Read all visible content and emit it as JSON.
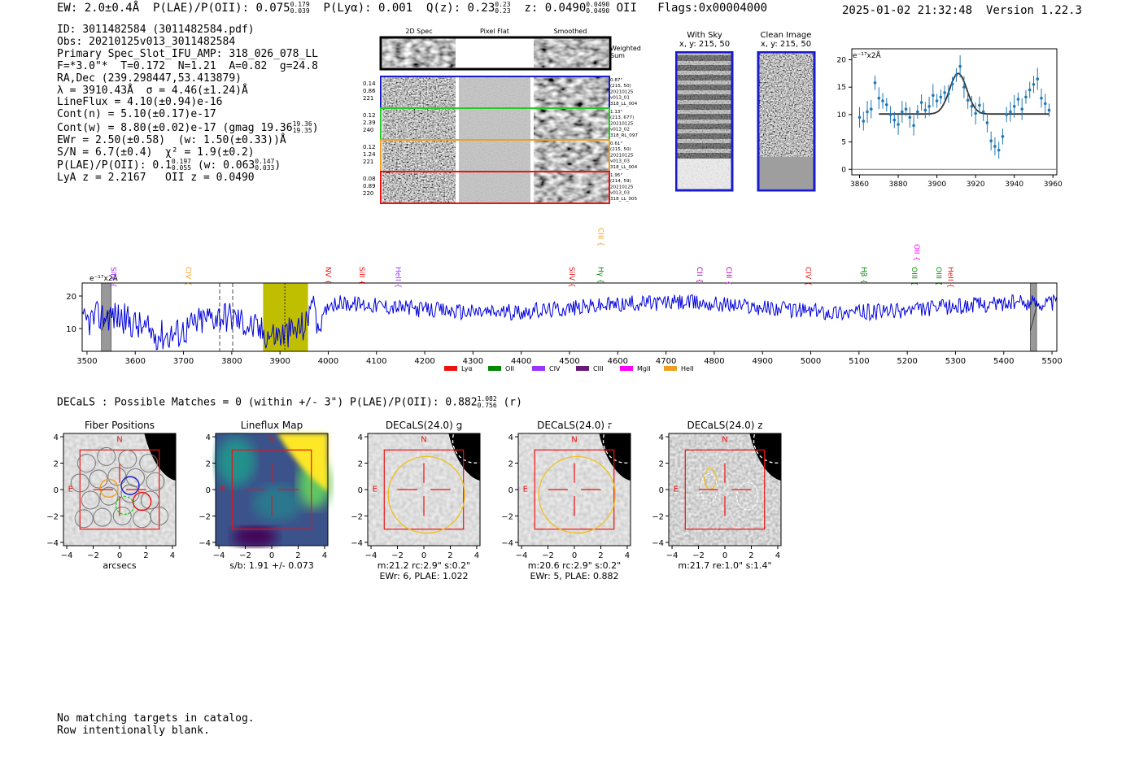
{
  "header": {
    "ew": "EW: 2.0±0.4Å",
    "plae_label": "P(LAE)/P(OII): 0.075",
    "plae_up": "0.179",
    "plae_dn": "0.039",
    "plya": "P(Lyα): 0.001",
    "qz_label": "Q(z): 0.23",
    "qz_up": "0.23",
    "qz_dn": "0.23",
    "z_label": "z: 0.0490",
    "z_up": "0.0490",
    "z_dn": "0.0490",
    "z_line": "OII",
    "flags": "Flags:0x00004000",
    "datetime": "2025-01-02 21:32:48",
    "version": "Version 1.22.3"
  },
  "info": {
    "id": "ID: 3011482584 (3011482584.pdf)",
    "obs": "Obs: 20210125v013_3011482584",
    "primary": "Primary Spec_Slot_IFU_AMP: 318_026_078_LL",
    "fiber": "F=*3.0\"*  T=0.172  N=1.21  A=0.82  g=24.8",
    "radec": "RA,Dec (239.298447,53.413879)",
    "lambda": "λ = 3910.43Å  σ = 4.46(±1.24)Å",
    "lineflux": "LineFlux = 4.10(±0.94)e-16",
    "contn": "Cont(n) = 5.10(±0.17)e-17",
    "contw": "Cont(w) = 8.80(±0.02)e-17 (gmag 19.36",
    "contw_up": "19.36",
    "contw_dn": "19.35",
    "contw_end": ")",
    "ewr": "EWr = 2.50(±0.58)  (w: 1.50(±0.33))Å",
    "sn": "S/N = 6.7(±0.4)  χ² = 1.9(±0.2)",
    "plae": "P(LAE)/P(OII): 0.1",
    "plae_up": "0.197",
    "plae_dn": "0.055",
    "plae_w": "(w: 0.063",
    "plae_w_up": "0.147",
    "plae_w_dn": "0.033",
    "plae_w_end": ")",
    "lyaz": "LyA z = 2.2167   OII z = 0.0490"
  },
  "spec2d": {
    "col_headers": [
      "2D Spec",
      "Pixel Flat",
      "Smoothed"
    ],
    "weighted_sum": [
      "Weighted",
      "Sum"
    ],
    "rows": [
      {
        "left": [
          "0.14",
          "0.86",
          "221"
        ],
        "right": [
          "0.87\"",
          "(215, 50)",
          "20210125",
          "v013_01",
          "318_LL_004"
        ],
        "color": "#1a1acd"
      },
      {
        "left": [
          "0.12",
          "2.39",
          "240"
        ],
        "right": [
          "1.13\"",
          "(213, 677)",
          "20210125",
          "v013_02",
          "318_RL_097"
        ],
        "color": "#22cc22"
      },
      {
        "left": [
          "0.12",
          "1.24",
          "221"
        ],
        "right": [
          "0.61\"",
          "(215, 50)",
          "20210125",
          "v013_03",
          "318_LL_004"
        ],
        "color": "#f0a020"
      },
      {
        "left": [
          "0.08",
          "0.89",
          "220"
        ],
        "right": [
          "1.95\"",
          "(214, 59)",
          "20210125",
          "v013_03",
          "318_LL_005"
        ],
        "color": "#ee1111"
      }
    ]
  },
  "cutouts": {
    "with_sky": [
      "With Sky",
      "x, y: 215, 50"
    ],
    "clean": [
      "Clean Image",
      "x, y: 215, 50"
    ]
  },
  "zoom_plot": {
    "unit": "e⁻¹⁷x2Å",
    "xticks": [
      "3860",
      "3880",
      "3900",
      "3920",
      "3940",
      "3960"
    ],
    "yticks": [
      "0",
      "5",
      "10",
      "15",
      "20"
    ]
  },
  "chart_data": [
    {
      "type": "scatter",
      "title": "",
      "ylabel": "e⁻¹⁷x2Å",
      "xlim": [
        3856,
        3962
      ],
      "ylim": [
        -1,
        22
      ],
      "x": [
        3860,
        3862,
        3864,
        3866,
        3868,
        3870,
        3872,
        3874,
        3876,
        3878,
        3880,
        3882,
        3884,
        3886,
        3888,
        3890,
        3892,
        3894,
        3896,
        3898,
        3900,
        3902,
        3904,
        3906,
        3908,
        3910,
        3912,
        3914,
        3916,
        3918,
        3920,
        3922,
        3924,
        3926,
        3928,
        3930,
        3932,
        3934,
        3936,
        3938,
        3940,
        3942,
        3944,
        3946,
        3948,
        3950,
        3952,
        3954,
        3956,
        3958
      ],
      "y": [
        9.5,
        8.8,
        10.5,
        11,
        15.8,
        13,
        12.5,
        11.8,
        10,
        9,
        8.2,
        10.5,
        11,
        9.5,
        8,
        10.5,
        12.2,
        10.8,
        11.5,
        13.5,
        12.5,
        13.2,
        14,
        13.8,
        15.6,
        17.2,
        18.8,
        15,
        12.6,
        11.5,
        10.2,
        11.7,
        10.5,
        8.5,
        5.2,
        4.2,
        3.5,
        6,
        10,
        10.5,
        11.5,
        12.8,
        11,
        13.2,
        14.5,
        15.5,
        16.5,
        13,
        12,
        10.8
      ],
      "fit": {
        "center": 3911,
        "sigma": 4.46,
        "amplitude": 7.4,
        "baseline": 10.1
      }
    },
    {
      "type": "line",
      "title": "",
      "ylabel": "e⁻¹⁷x2Å",
      "xlim": [
        3490,
        5510
      ],
      "ylim": [
        3,
        24
      ],
      "xticks": [
        3500,
        3600,
        3700,
        3800,
        3900,
        4000,
        4100,
        4200,
        4300,
        4400,
        4500,
        4600,
        4700,
        4800,
        4900,
        5000,
        5100,
        5200,
        5300,
        5400,
        5500
      ],
      "yticks": [
        10,
        20
      ],
      "highlight_range": [
        3865,
        3958
      ],
      "line_center": 3910,
      "dashed_lines": [
        3775,
        3802
      ],
      "masked_ranges": [
        [
          3530,
          3550
        ],
        [
          5455,
          5468
        ]
      ],
      "lines": [
        {
          "name": "SiIV",
          "x": 3545,
          "color": "#9933ff",
          "row": 2
        },
        {
          "name": "CIV",
          "x": 3700,
          "color": "#f0a020",
          "row": 2
        },
        {
          "name": "CIII",
          "x": 4555,
          "color": "#f0a020",
          "row": 0
        },
        {
          "name": "NV",
          "x": 3990,
          "color": "#ee1111",
          "row": 2
        },
        {
          "name": "SiII",
          "x": 4060,
          "color": "#ee1111",
          "row": 2
        },
        {
          "name": "HeII",
          "x": 4135,
          "color": "#9933ff",
          "row": 2
        },
        {
          "name": "SiIV",
          "x": 4495,
          "color": "#ee1111",
          "row": 2
        },
        {
          "name": "Hγ",
          "x": 4555,
          "color": "#008800",
          "row": 2
        },
        {
          "name": "CII",
          "x": 4760,
          "color": "#aa00aa",
          "row": 2
        },
        {
          "name": "CIII",
          "x": 4820,
          "color": "#aa00aa",
          "row": 2
        },
        {
          "name": "CIV",
          "x": 4985,
          "color": "#ee1111",
          "row": 2
        },
        {
          "name": "Hβ",
          "x": 5100,
          "color": "#008800",
          "row": 2
        },
        {
          "name": "OIII",
          "x": 5205,
          "color": "#008800",
          "row": 2
        },
        {
          "name": "OII",
          "x": 5210,
          "color": "#ff00ff",
          "row": 1
        },
        {
          "name": "OIII",
          "x": 5255,
          "color": "#008800",
          "row": 2
        },
        {
          "name": "HeII",
          "x": 5280,
          "color": "#ee1111",
          "row": 2
        }
      ],
      "legend": [
        {
          "name": "Lyα",
          "color": "#ee1111"
        },
        {
          "name": "OII",
          "color": "#008800"
        },
        {
          "name": "CIV",
          "color": "#9933ff"
        },
        {
          "name": "CIII",
          "color": "#6a1a7a"
        },
        {
          "name": "MgII",
          "color": "#ff00ff"
        },
        {
          "name": "HeII",
          "color": "#f0a020"
        }
      ]
    }
  ],
  "spectrum_legend_loc": "bottom-center",
  "decals": {
    "title": "DECaLS : Possible Matches = 0 (within +/- 3\")  P(LAE)/P(OII): 0.882",
    "up": "1.082",
    "dn": "0.756",
    "band": "(r)"
  },
  "panels": [
    {
      "title": "Fiber Positions",
      "xlabel": "arcsecs",
      "caption": [
        "",
        ""
      ]
    },
    {
      "title": "Lineflux Map",
      "xlabel": "",
      "caption": [
        "s/b: 1.91 +/- 0.073",
        ""
      ]
    },
    {
      "title": "DECaLS(24.0) g",
      "xlabel": "",
      "caption": [
        "m:21.2 rc:2.9\"  s:0.2\"",
        "EWr: 6, PLAE: 1.022"
      ]
    },
    {
      "title": "DECaLS(24.0) r",
      "xlabel": "",
      "caption": [
        "m:20.6 rc:2.9\"  s:0.2\"",
        "EWr: 5, PLAE: 0.882"
      ]
    },
    {
      "title": "DECaLS(24.0) z",
      "xlabel": "",
      "caption": [
        "m:21.7  re:1.0\"  s:1.4\"",
        ""
      ]
    }
  ],
  "panel_axes": {
    "ticks": [
      "−4",
      "−2",
      "0",
      "2",
      "4"
    ],
    "north": "N",
    "east": "E"
  },
  "notes": [
    "No matching targets in catalog.",
    "Row intentionally blank."
  ]
}
